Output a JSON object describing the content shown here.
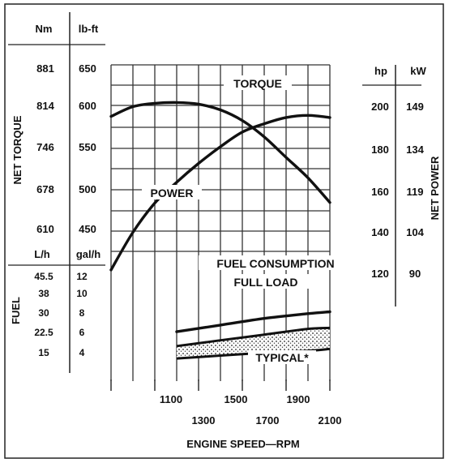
{
  "chart_data": {
    "type": "line",
    "x": [
      1100,
      1200,
      1300,
      1400,
      1500,
      1600,
      1700,
      1800,
      1900,
      2000,
      2100
    ],
    "x_ticks": [
      1100,
      1300,
      1500,
      1700,
      1900,
      2100
    ],
    "x_tick_labels_upper": [
      "1100",
      "1500",
      "1900"
    ],
    "x_tick_labels_lower": [
      "1300",
      "1700",
      "2100"
    ],
    "xlabel": "ENGINE SPEED—RPM",
    "xlim": [
      1100,
      2100
    ],
    "grid": true,
    "left_axis": {
      "label": "NET TORQUE",
      "unit_headers": [
        "Nm",
        "lb-ft"
      ],
      "ticks_nm": [
        "881",
        "814",
        "746",
        "678",
        "610"
      ],
      "ticks_lbft": [
        "650",
        "600",
        "550",
        "500",
        "450"
      ],
      "ylim_lbft": [
        440,
        660
      ]
    },
    "fuel_axis": {
      "label": "FUEL",
      "unit_headers": [
        "L/h",
        "gal/h"
      ],
      "ticks_lh": [
        "45.5",
        "38",
        "30",
        "22.5",
        "15"
      ],
      "ticks_galh": [
        "12",
        "10",
        "8",
        "6",
        "4"
      ]
    },
    "right_axis": {
      "label": "NET POWER",
      "unit_headers": [
        "hp",
        "kW"
      ],
      "ticks_hp": [
        "200",
        "180",
        "160",
        "140",
        "120"
      ],
      "ticks_kw": [
        "149",
        "134",
        "119",
        "104",
        "90"
      ],
      "ylim_hp": [
        115,
        215
      ]
    },
    "series": [
      {
        "name": "TORQUE",
        "axis": "lb-ft",
        "x": [
          1100,
          1200,
          1300,
          1400,
          1500,
          1600,
          1700,
          1800,
          1900,
          2000,
          2100
        ],
        "values": [
          590,
          602,
          606,
          607,
          605,
          598,
          585,
          565,
          540,
          515,
          485
        ]
      },
      {
        "name": "POWER",
        "axis": "hp",
        "x": [
          1100,
          1200,
          1300,
          1400,
          1500,
          1600,
          1700,
          1800,
          1900,
          2000,
          2100
        ],
        "values": [
          122,
          140,
          154,
          164,
          173,
          181,
          188,
          192,
          195,
          196,
          195
        ]
      },
      {
        "name": "FULL LOAD",
        "axis": "gal/h",
        "x": [
          1400,
          1600,
          1800,
          2000,
          2100
        ],
        "values": [
          6.2,
          6.9,
          7.6,
          8.1,
          8.3
        ]
      },
      {
        "name": "TYPICAL*",
        "axis": "gal/h",
        "band": true,
        "x": [
          1400,
          1600,
          1800,
          2000,
          2100
        ],
        "upper": [
          4.7,
          5.3,
          5.9,
          6.5,
          6.6
        ],
        "lower": [
          3.4,
          3.7,
          4.0,
          4.2,
          4.4
        ]
      }
    ],
    "annotations": {
      "torque": "TORQUE",
      "power": "POWER",
      "fuel_consumption": "FUEL CONSUMPTION",
      "full_load": "FULL LOAD",
      "typical": "TYPICAL*"
    }
  }
}
